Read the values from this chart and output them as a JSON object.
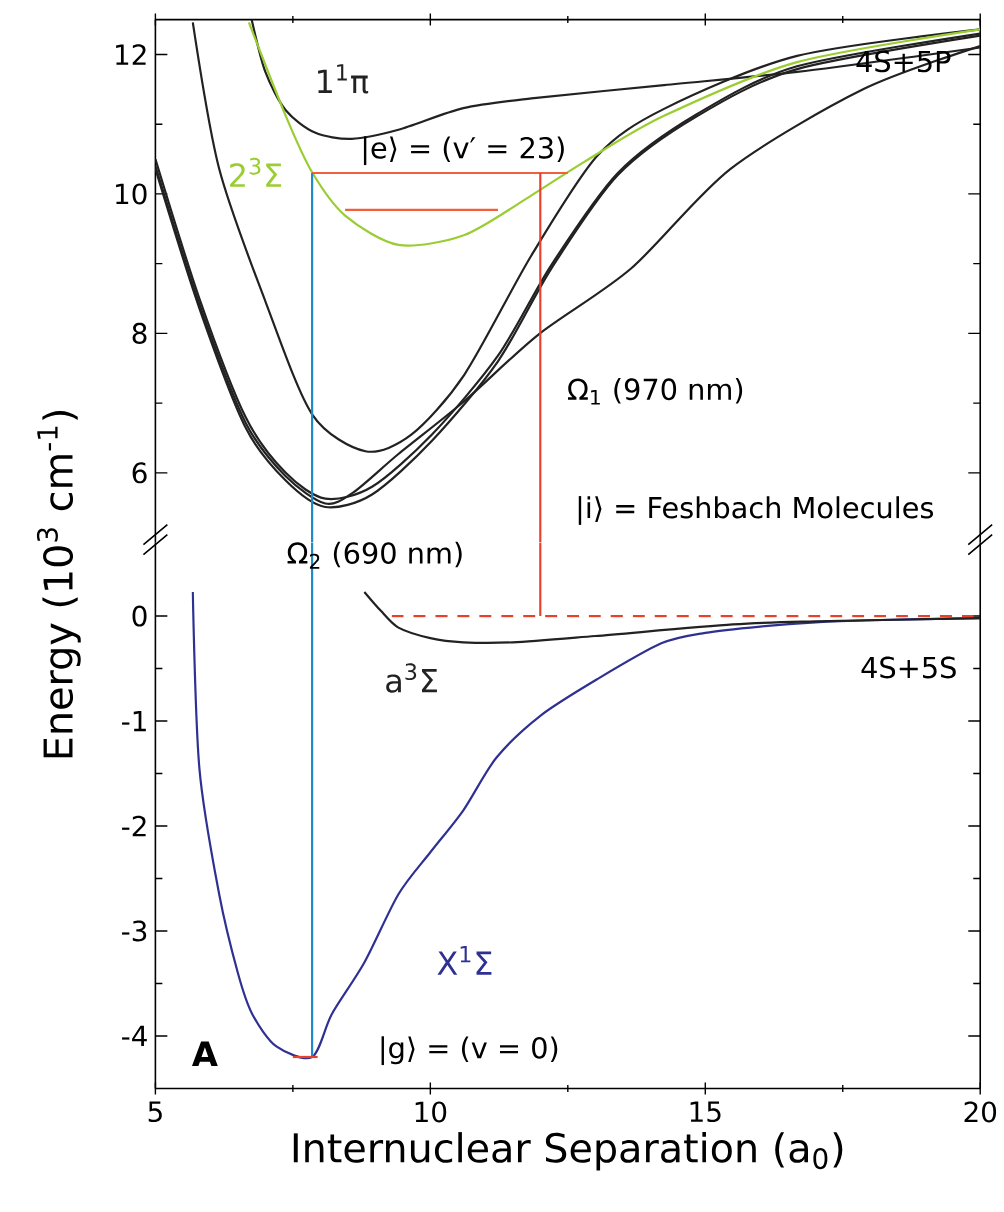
{
  "chart_data": [
    {
      "type": "line",
      "ylabel": "Energy (10$^{3}$ cm$^{-1}$)",
      "xlim": [
        5,
        20
      ],
      "ylim": [
        5,
        12.5
      ],
      "xticks": [
        5,
        10,
        15,
        20
      ],
      "yticks": [
        6,
        8,
        10,
        12
      ],
      "tick_labels": "y",
      "line_style": "solid",
      "series": [
        {
          "color": "#222222",
          "x": [
            5.0,
            5.8,
            6.64,
            7.37,
            8.09,
            8.94,
            10.03,
            11.23,
            12.2,
            13.41,
            14.86,
            16.67,
            20
          ],
          "values": [
            10.36,
            8.36,
            6.65,
            5.89,
            5.51,
            5.69,
            6.46,
            7.6,
            8.93,
            10.27,
            11.12,
            11.79,
            12.27
          ]
        },
        {
          "color": "#222222",
          "x": [
            5.0,
            5.8,
            6.64,
            7.37,
            8.09,
            8.94,
            10.03,
            11.23,
            12.2,
            13.41,
            14.86,
            16.67,
            20
          ],
          "values": [
            10.5,
            8.5,
            6.8,
            6.0,
            5.63,
            5.8,
            6.55,
            7.68,
            8.98,
            10.3,
            11.15,
            11.83,
            12.3
          ]
        },
        {
          "color": "#222222",
          "x": [
            5.0,
            5.8,
            6.64,
            7.37,
            8.09,
            8.6,
            9.42,
            10.62,
            11.96,
            13.65,
            15.46,
            17.87,
            20
          ],
          "values": [
            10.4,
            8.42,
            6.72,
            5.95,
            5.56,
            5.72,
            6.27,
            7.03,
            7.98,
            8.93,
            10.36,
            11.5,
            12.12
          ]
        },
        {
          "color": "#222222",
          "x": [
            5.68,
            6.16,
            7.0,
            7.85,
            8.82,
            9.66,
            10.62,
            11.84,
            13.04,
            14.25,
            16.67,
            20
          ],
          "values": [
            12.46,
            10.36,
            8.46,
            6.84,
            6.31,
            6.55,
            7.41,
            9.12,
            10.55,
            11.22,
            11.98,
            12.36
          ]
        },
        {
          "name": "1$^{1}$π",
          "color": "#222222",
          "x": [
            6.75,
            7.0,
            7.37,
            7.9,
            8.57,
            9.42,
            10.6,
            11.84,
            14.25,
            16.67,
            19.08,
            20
          ],
          "values": [
            12.5,
            11.75,
            11.2,
            10.88,
            10.79,
            10.92,
            11.23,
            11.37,
            11.56,
            11.75,
            12.0,
            12.1
          ]
        },
        {
          "name": "2$^{3}$Σ",
          "color": "#9acd32",
          "x": [
            6.7,
            7.37,
            7.85,
            8.45,
            9.42,
            10.62,
            11.84,
            12.8,
            14.25,
            16.67,
            20
          ],
          "values": [
            12.46,
            11.12,
            10.31,
            9.69,
            9.27,
            9.41,
            9.98,
            10.46,
            11.12,
            11.89,
            12.36
          ]
        },
        {
          "color": "#f0603c",
          "x": [
            7.85,
            12.5
          ],
          "values": [
            10.3,
            10.3
          ]
        },
        {
          "color": "#f0603c",
          "x": [
            8.45,
            11.23
          ],
          "values": [
            9.77,
            9.77
          ]
        },
        {
          "color": "#e8402a",
          "x": [
            12,
            12
          ],
          "values": [
            5.0,
            10.3
          ]
        },
        {
          "color": "#1f8ac9",
          "x": [
            7.85,
            7.85
          ],
          "values": [
            10.3,
            5.0
          ]
        }
      ],
      "annotations": [
        "|e⟩ = (v′ = 23)",
        "4S+5P",
        "Ω$_{1}$ (970 nm)",
        "|i⟩ = Feshbach Molecules"
      ]
    },
    {
      "type": "line",
      "xlabel": "Internuclear Separation (a$_{0}$)",
      "xlim": [
        5,
        20
      ],
      "ylim": [
        -4.5,
        0.7
      ],
      "xticks": [
        5,
        10,
        15,
        20
      ],
      "yticks": [
        -4,
        -3,
        -2,
        -1,
        0
      ],
      "line_style": "solid",
      "series": [
        {
          "name": "X$^{1}$Σ",
          "color": "#2e3192",
          "x": [
            5.68,
            5.8,
            6.16,
            6.5,
            6.76,
            7.2,
            7.85,
            8.21,
            8.8,
            9.42,
            10.0,
            10.6,
            11.2,
            12.0,
            13.04,
            14.2,
            15.0,
            16.0,
            17.0,
            18.0,
            20
          ],
          "values": [
            0.23,
            -1.45,
            -2.65,
            -3.4,
            -3.79,
            -4.1,
            -4.2,
            -3.79,
            -3.3,
            -2.65,
            -2.25,
            -1.85,
            -1.35,
            -0.95,
            -0.6,
            -0.26,
            -0.16,
            -0.1,
            -0.06,
            -0.04,
            -0.02
          ]
        },
        {
          "name": "a$^{3}$Σ",
          "color": "#222222",
          "x": [
            8.8,
            9.1,
            9.42,
            10.0,
            10.6,
            11.5,
            13.0,
            15.5,
            17.0,
            20
          ],
          "values": [
            0.23,
            0.05,
            -0.11,
            -0.21,
            -0.25,
            -0.25,
            -0.19,
            -0.08,
            -0.05,
            -0.02
          ]
        },
        {
          "color": "#e8402a",
          "line_style": "dashed",
          "x": [
            9.3,
            20
          ],
          "values": [
            0,
            0
          ]
        },
        {
          "color": "#e8402a",
          "x": [
            12,
            12
          ],
          "values": [
            0,
            0.7
          ]
        },
        {
          "color": "#1f8ac9",
          "x": [
            7.85,
            7.85
          ],
          "values": [
            0.7,
            -4.2
          ]
        },
        {
          "color": "#e8402a",
          "x": [
            7.5,
            7.95
          ],
          "values": [
            -4.2,
            -4.2
          ]
        }
      ],
      "annotations": [
        "Ω$_{2}$ (690 nm)",
        "4S+5S",
        "|g⟩ = (v = 0)",
        "A"
      ]
    }
  ]
}
